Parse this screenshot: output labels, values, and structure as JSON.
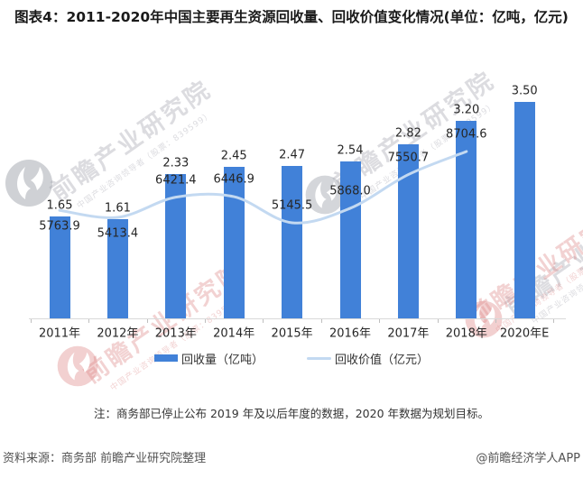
{
  "title": "图表4：2011-2020年中国主要再生资源回收量、回收价值变化情况(单位：亿吨，亿元)",
  "chart_data": {
    "type": "combo-bar-line",
    "categories": [
      "2011年",
      "2012年",
      "2013年",
      "2014年",
      "2015年",
      "2016年",
      "2017年",
      "2018年",
      "2020年E"
    ],
    "series": [
      {
        "name": "回收量（亿吨）",
        "type": "bar",
        "values": [
          1.65,
          1.61,
          2.33,
          2.45,
          2.47,
          2.54,
          2.82,
          3.2,
          3.5
        ],
        "labels": [
          "1.65",
          "1.61",
          "2.33",
          "2.45",
          "2.47",
          "2.54",
          "2.82",
          "3.20",
          "3.50"
        ]
      },
      {
        "name": "回收价值（亿元）",
        "type": "line",
        "values": [
          5763.9,
          5413.4,
          6421.4,
          6446.9,
          5145.5,
          5868.0,
          7550.7,
          8704.6,
          null
        ],
        "labels": [
          "5763.9",
          "5413.4",
          "6421.4",
          "6446.9",
          "5145.5",
          "5868.0",
          "7550.7",
          "8704.6",
          ""
        ]
      }
    ],
    "colors": {
      "bar": "#4181D8",
      "line": "#C3D9F1"
    },
    "legend_position": "bottom",
    "gridlines": false,
    "y_axes_visible": false,
    "line_smooth": true
  },
  "note": "注：商务部已停止公布 2019 年及以后年度的数据，2020 年数据为规划目标。",
  "footer": {
    "source": "资料来源：商务部 前瞻产业研究院整理",
    "credit": "@前瞻经济学人APP"
  },
  "watermark": {
    "big": "前瞻产业研究院",
    "small": "中国产业咨询领导者（股票：839599）"
  }
}
